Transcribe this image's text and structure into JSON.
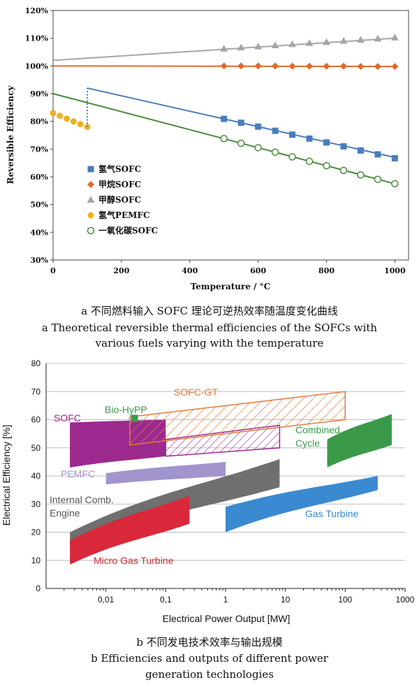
{
  "captions": {
    "a_cn": "a  不同燃料输入 SOFC 理论可逆热效率随温度变化曲线",
    "a_en1": "a  Theoretical reversible thermal efficiencies of the SOFCs with",
    "a_en2": "various fuels varying with the temperature",
    "b_cn": "b  不同发电技术效率与输出规模",
    "b_en1": "b  Efficiencies and outputs of different power",
    "b_en2": "generation technologies"
  },
  "chart_data": [
    {
      "type": "line",
      "xlabel": "Temperature / °C",
      "ylabel": "Reversible Efficiency",
      "xlim": [
        0,
        1040
      ],
      "ylim": [
        30,
        120
      ],
      "xticks": [
        0,
        200,
        400,
        600,
        800,
        1000
      ],
      "yticks": [
        30,
        40,
        50,
        60,
        70,
        80,
        90,
        100,
        110,
        120
      ],
      "grid": false,
      "legend_position": "bottom-left",
      "series": [
        {
          "name": "氢气SOFC",
          "color": "#4a7ebb",
          "marker": "square",
          "line": [
            [
              100,
              92
            ],
            [
              1000,
              67
            ]
          ],
          "x": [
            500,
            550,
            600,
            650,
            700,
            750,
            800,
            850,
            900,
            950,
            1000
          ],
          "y": [
            80.9,
            79.5,
            78.1,
            76.6,
            75.2,
            73.8,
            72.4,
            71.0,
            69.5,
            68.1,
            66.7
          ]
        },
        {
          "name": "甲烷SOFC",
          "color": "#e06a2c",
          "marker": "diamond",
          "line": [
            [
              0,
              100
            ],
            [
              1000,
              99.8
            ]
          ],
          "x": [
            500,
            550,
            600,
            650,
            700,
            750,
            800,
            850,
            900,
            950,
            1000
          ],
          "y": [
            100,
            100,
            100,
            100,
            99.9,
            99.9,
            99.9,
            99.9,
            99.8,
            99.8,
            99.8
          ]
        },
        {
          "name": "甲醇SOFC",
          "color": "#a6a6a6",
          "marker": "triangle",
          "line": [
            [
              0,
              102
            ],
            [
              1000,
              110
            ]
          ],
          "x": [
            500,
            550,
            600,
            650,
            700,
            750,
            800,
            850,
            900,
            950,
            1000
          ],
          "y": [
            106.2,
            106.6,
            107.0,
            107.4,
            107.8,
            108.2,
            108.6,
            109.0,
            109.4,
            109.8,
            110.2
          ]
        },
        {
          "name": "氢气PEMFC",
          "color": "#f0b020",
          "marker": "circle",
          "x": [
            0,
            20,
            40,
            60,
            80,
            100
          ],
          "y": [
            83,
            82,
            81,
            80,
            79,
            78
          ]
        },
        {
          "name": "一氧化碳SOFC",
          "color": "#4a8a3a",
          "marker": "circle-open",
          "line": [
            [
              0,
              90
            ],
            [
              1000,
              57.5
            ]
          ],
          "x": [
            500,
            550,
            600,
            650,
            700,
            750,
            800,
            850,
            900,
            950,
            1000
          ],
          "y": [
            73.8,
            72.1,
            70.5,
            68.9,
            67.2,
            65.6,
            64.0,
            62.3,
            60.7,
            59.1,
            57.5
          ]
        }
      ],
      "annotations": [
        {
          "type": "dotted-line",
          "x": 100,
          "from": 78,
          "to": 92,
          "color": "#4a7ebb"
        }
      ]
    },
    {
      "type": "area",
      "xlabel": "Electrical Power Output [MW]",
      "ylabel": "Electrical Efficiency [%]",
      "xscale": "log",
      "xlim": [
        0.001,
        1000
      ],
      "ylim": [
        0,
        80
      ],
      "xticks": [
        "0,01",
        "0,1",
        "1",
        "10",
        "100",
        "1000"
      ],
      "yticks": [
        0,
        10,
        20,
        30,
        40,
        50,
        60,
        70,
        80
      ],
      "grid": "horizontal",
      "regions": [
        {
          "name": "SOFC",
          "color": "#9c2a8e",
          "x": [
            0.0025,
            0.1
          ],
          "y_low": [
            43,
            47
          ],
          "y_high": [
            59,
            60
          ]
        },
        {
          "name": "SOFC-GT",
          "color": "#e07b39",
          "style": "hatched",
          "x": [
            0.025,
            100
          ],
          "y_low": [
            51,
            60
          ],
          "y_high": [
            61,
            70
          ]
        },
        {
          "name": "SOFC-GT (lower)",
          "color": "#9c2a8e",
          "style": "hatched",
          "x": [
            0.1,
            8
          ],
          "y_low": [
            47,
            50
          ],
          "y_high": [
            53,
            58
          ]
        },
        {
          "name": "Bio-HyPP",
          "color": "#3a9a4a",
          "point": [
            0.03,
            60.5
          ]
        },
        {
          "name": "Combined Cycle",
          "color": "#3a9a4a",
          "x": [
            50,
            600
          ],
          "y_low": [
            43,
            51
          ],
          "y_high": [
            53,
            62
          ]
        },
        {
          "name": "PEMFC",
          "color": "#a294cc",
          "x": [
            0.01,
            1
          ],
          "y_low": [
            37,
            40
          ],
          "y_high": [
            41,
            45
          ]
        },
        {
          "name": "Internal Comb. Engine",
          "color": "#6f6f6f",
          "x": [
            0.0025,
            8
          ],
          "y_low": [
            15,
            36
          ],
          "y_high": [
            20,
            46
          ]
        },
        {
          "name": "Micro Gas Turbine",
          "color": "#d8283a",
          "x": [
            0.0025,
            0.25
          ],
          "y_low": [
            8.5,
            23
          ],
          "y_high": [
            17,
            33
          ]
        },
        {
          "name": "Gas Turbine",
          "color": "#3a8ad1",
          "x": [
            1,
            350
          ],
          "y_low": [
            20,
            35
          ],
          "y_high": [
            29,
            40
          ]
        }
      ],
      "labels": {
        "sofc": "SOFC",
        "sofc_gt": "SOFC-GT",
        "bio_hypp": "Bio-HyPP",
        "combined_1": "Combined",
        "combined_2": "Cycle",
        "pemfc": "PEMFC",
        "ice_1": "Internal Comb.",
        "ice_2": "Engine",
        "gas_turbine": "Gas Turbine",
        "micro_gt": "Micro Gas Turbine"
      }
    }
  ]
}
